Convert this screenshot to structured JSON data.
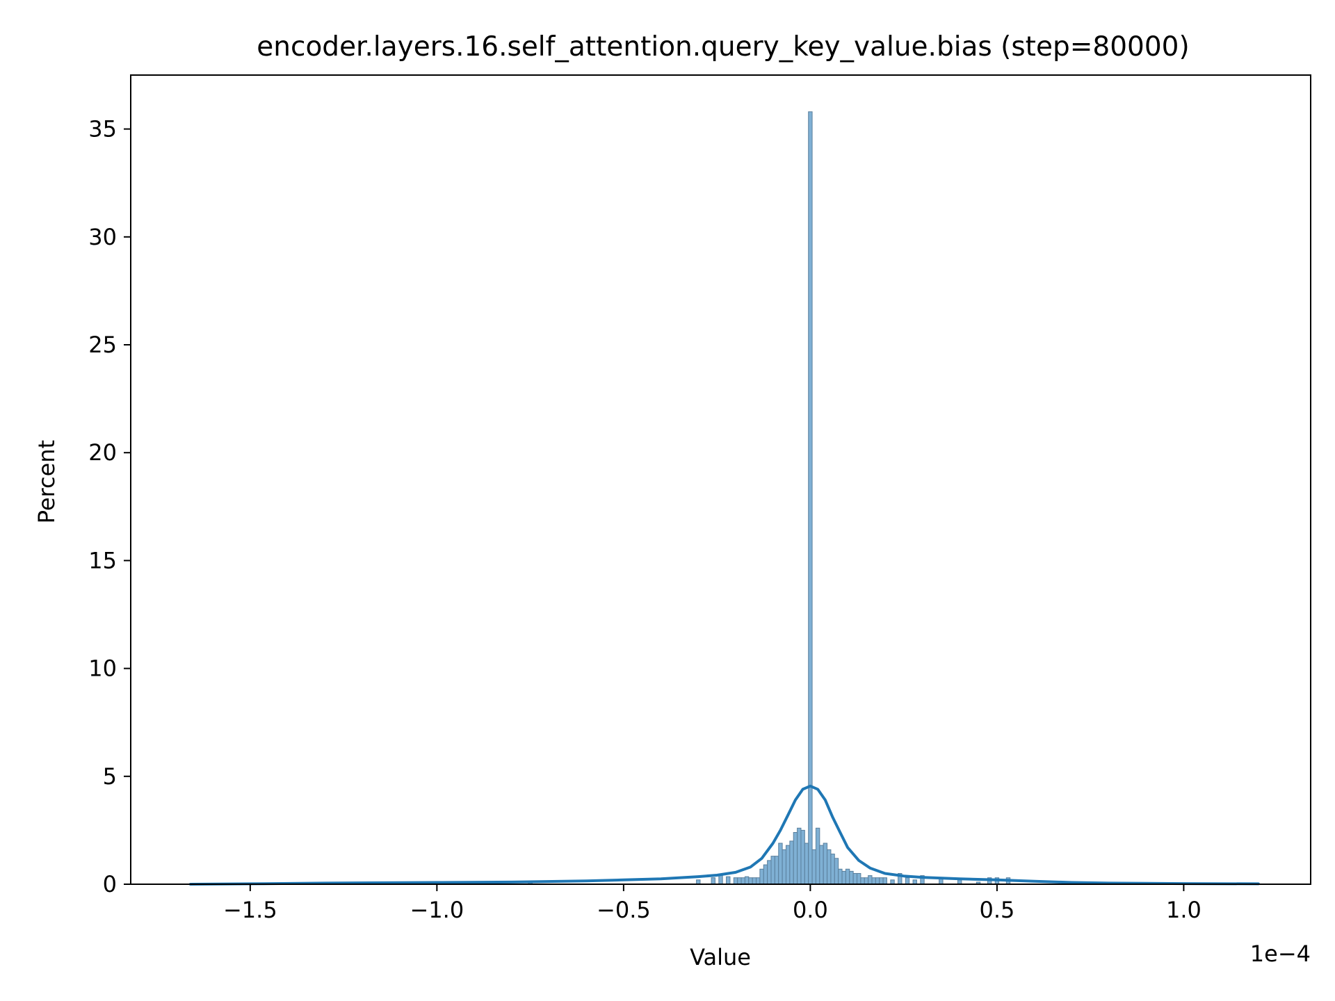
{
  "chart_data": {
    "type": "bar",
    "title": "encoder.layers.16.self_attention.query_key_value.bias (step=80000)",
    "xlabel": "Value",
    "ylabel": "Percent",
    "x_offset_label": "1e−4",
    "xlim": [
      -1.82,
      1.34
    ],
    "ylim": [
      0,
      37.5
    ],
    "x_ticks": [
      {
        "value": -1.5,
        "label": "−1.5"
      },
      {
        "value": -1.0,
        "label": "−1.0"
      },
      {
        "value": -0.5,
        "label": "−0.5"
      },
      {
        "value": 0.0,
        "label": "0.0"
      },
      {
        "value": 0.5,
        "label": "0.5"
      },
      {
        "value": 1.0,
        "label": "1.0"
      }
    ],
    "y_ticks": [
      {
        "value": 0,
        "label": "0"
      },
      {
        "value": 5,
        "label": "5"
      },
      {
        "value": 10,
        "label": "10"
      },
      {
        "value": 15,
        "label": "15"
      },
      {
        "value": 20,
        "label": "20"
      },
      {
        "value": 25,
        "label": "25"
      },
      {
        "value": 30,
        "label": "30"
      },
      {
        "value": 35,
        "label": "35"
      }
    ],
    "grid": false,
    "bar_color": "#7fb0d4",
    "bar_edge_color": "#5a7f9c",
    "kde_color": "#1f77b4",
    "histogram": {
      "bin_centers": [
        -0.92,
        -0.75,
        -0.3,
        -0.26,
        -0.24,
        -0.22,
        -0.2,
        -0.19,
        -0.18,
        -0.17,
        -0.16,
        -0.15,
        -0.14,
        -0.13,
        -0.12,
        -0.11,
        -0.1,
        -0.09,
        -0.08,
        -0.07,
        -0.06,
        -0.05,
        -0.04,
        -0.03,
        -0.02,
        -0.01,
        0.0,
        0.01,
        0.02,
        0.03,
        0.04,
        0.05,
        0.06,
        0.07,
        0.08,
        0.09,
        0.1,
        0.11,
        0.12,
        0.13,
        0.14,
        0.15,
        0.16,
        0.17,
        0.18,
        0.19,
        0.2,
        0.22,
        0.24,
        0.26,
        0.28,
        0.3,
        0.35,
        0.4,
        0.45,
        0.48,
        0.5,
        0.53
      ],
      "values": [
        0.05,
        0.1,
        0.2,
        0.3,
        0.4,
        0.35,
        0.3,
        0.3,
        0.3,
        0.35,
        0.3,
        0.3,
        0.3,
        0.7,
        0.9,
        1.1,
        1.3,
        1.3,
        1.9,
        1.6,
        1.8,
        2.0,
        2.4,
        2.6,
        2.5,
        1.9,
        35.8,
        1.6,
        2.6,
        1.8,
        1.9,
        1.6,
        1.4,
        1.2,
        0.7,
        0.6,
        0.7,
        0.6,
        0.5,
        0.5,
        0.3,
        0.3,
        0.4,
        0.3,
        0.3,
        0.3,
        0.3,
        0.2,
        0.5,
        0.3,
        0.2,
        0.4,
        0.3,
        0.2,
        0.1,
        0.3,
        0.3,
        0.3
      ]
    },
    "kde": {
      "x": [
        -1.66,
        -1.5,
        -1.3,
        -1.0,
        -0.8,
        -0.6,
        -0.5,
        -0.4,
        -0.3,
        -0.25,
        -0.2,
        -0.16,
        -0.13,
        -0.1,
        -0.08,
        -0.06,
        -0.04,
        -0.02,
        0.0,
        0.02,
        0.04,
        0.06,
        0.08,
        0.1,
        0.13,
        0.16,
        0.2,
        0.25,
        0.3,
        0.4,
        0.5,
        0.6,
        0.7,
        0.8,
        1.0,
        1.2
      ],
      "y": [
        0.0,
        0.02,
        0.05,
        0.08,
        0.1,
        0.15,
        0.2,
        0.25,
        0.35,
        0.42,
        0.55,
        0.8,
        1.2,
        1.9,
        2.5,
        3.2,
        3.9,
        4.4,
        4.55,
        4.4,
        3.9,
        3.1,
        2.4,
        1.7,
        1.1,
        0.75,
        0.5,
        0.38,
        0.32,
        0.25,
        0.2,
        0.14,
        0.08,
        0.05,
        0.03,
        0.02
      ]
    }
  }
}
